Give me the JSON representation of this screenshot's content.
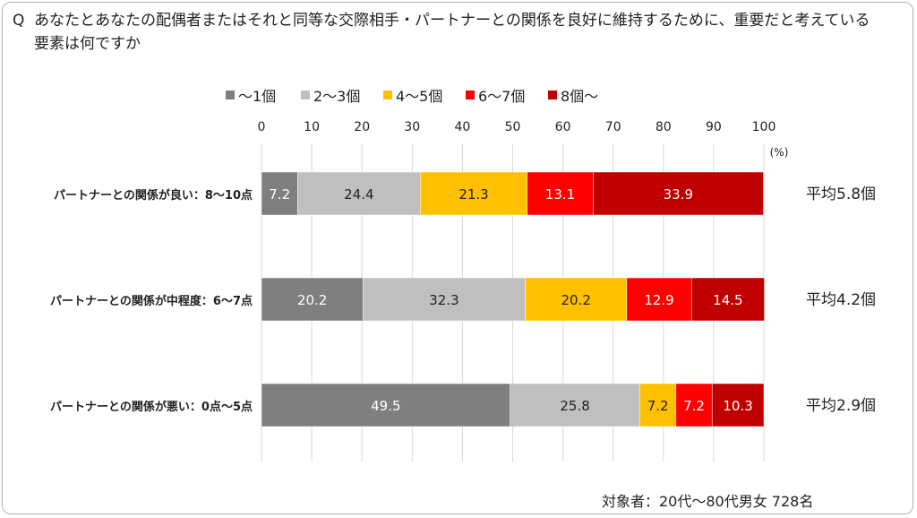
{
  "question": {
    "mark": "Q",
    "text": "あなたとあなたの配偶者またはそれと同等な交際相手・パートナーとの関係を良好に維持するために、重要だと考えている要素は何ですか"
  },
  "footnote": "対象者：20代～80代男女 728名",
  "colors": {
    "s1": "#7f7f7f",
    "s2": "#bfbfbf",
    "s3": "#ffc000",
    "s4": "#ff0000",
    "s5": "#c00000",
    "grid": "#d9d9d9"
  },
  "chart_data": {
    "type": "bar",
    "orientation": "horizontal",
    "stacked": true,
    "unit": "(%)",
    "xlim": [
      0,
      100
    ],
    "xticks": [
      0,
      10,
      20,
      30,
      40,
      50,
      60,
      70,
      80,
      90,
      100
    ],
    "legend_position": "top",
    "categories": [
      "パートナーとの関係が良い：8～10点",
      "パートナーとの関係が中程度：6～7点",
      "パートナーとの関係が悪い：0点～5点"
    ],
    "series": [
      {
        "name": "～1個",
        "values": [
          7.2,
          20.2,
          49.5
        ]
      },
      {
        "name": "2～3個",
        "values": [
          24.4,
          32.3,
          25.8
        ]
      },
      {
        "name": "4～5個",
        "values": [
          21.3,
          20.2,
          7.2
        ]
      },
      {
        "name": "6～7個",
        "values": [
          13.1,
          12.9,
          7.2
        ]
      },
      {
        "name": "8個～",
        "values": [
          33.9,
          14.5,
          10.3
        ]
      }
    ],
    "averages": [
      "平均5.8個",
      "平均4.2個",
      "平均2.9個"
    ]
  }
}
